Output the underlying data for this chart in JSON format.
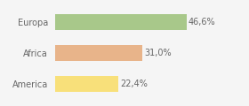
{
  "categories": [
    "Europa",
    "Africa",
    "America"
  ],
  "values": [
    46.6,
    31.0,
    22.4
  ],
  "labels": [
    "46,6%",
    "31,0%",
    "22,4%"
  ],
  "bar_colors": [
    "#a8c88a",
    "#e8b48a",
    "#f8e07a"
  ],
  "background_color": "#f5f5f5",
  "xlim": [
    0,
    58
  ],
  "label_fontsize": 7.0,
  "tick_fontsize": 7.0,
  "bar_height": 0.52
}
